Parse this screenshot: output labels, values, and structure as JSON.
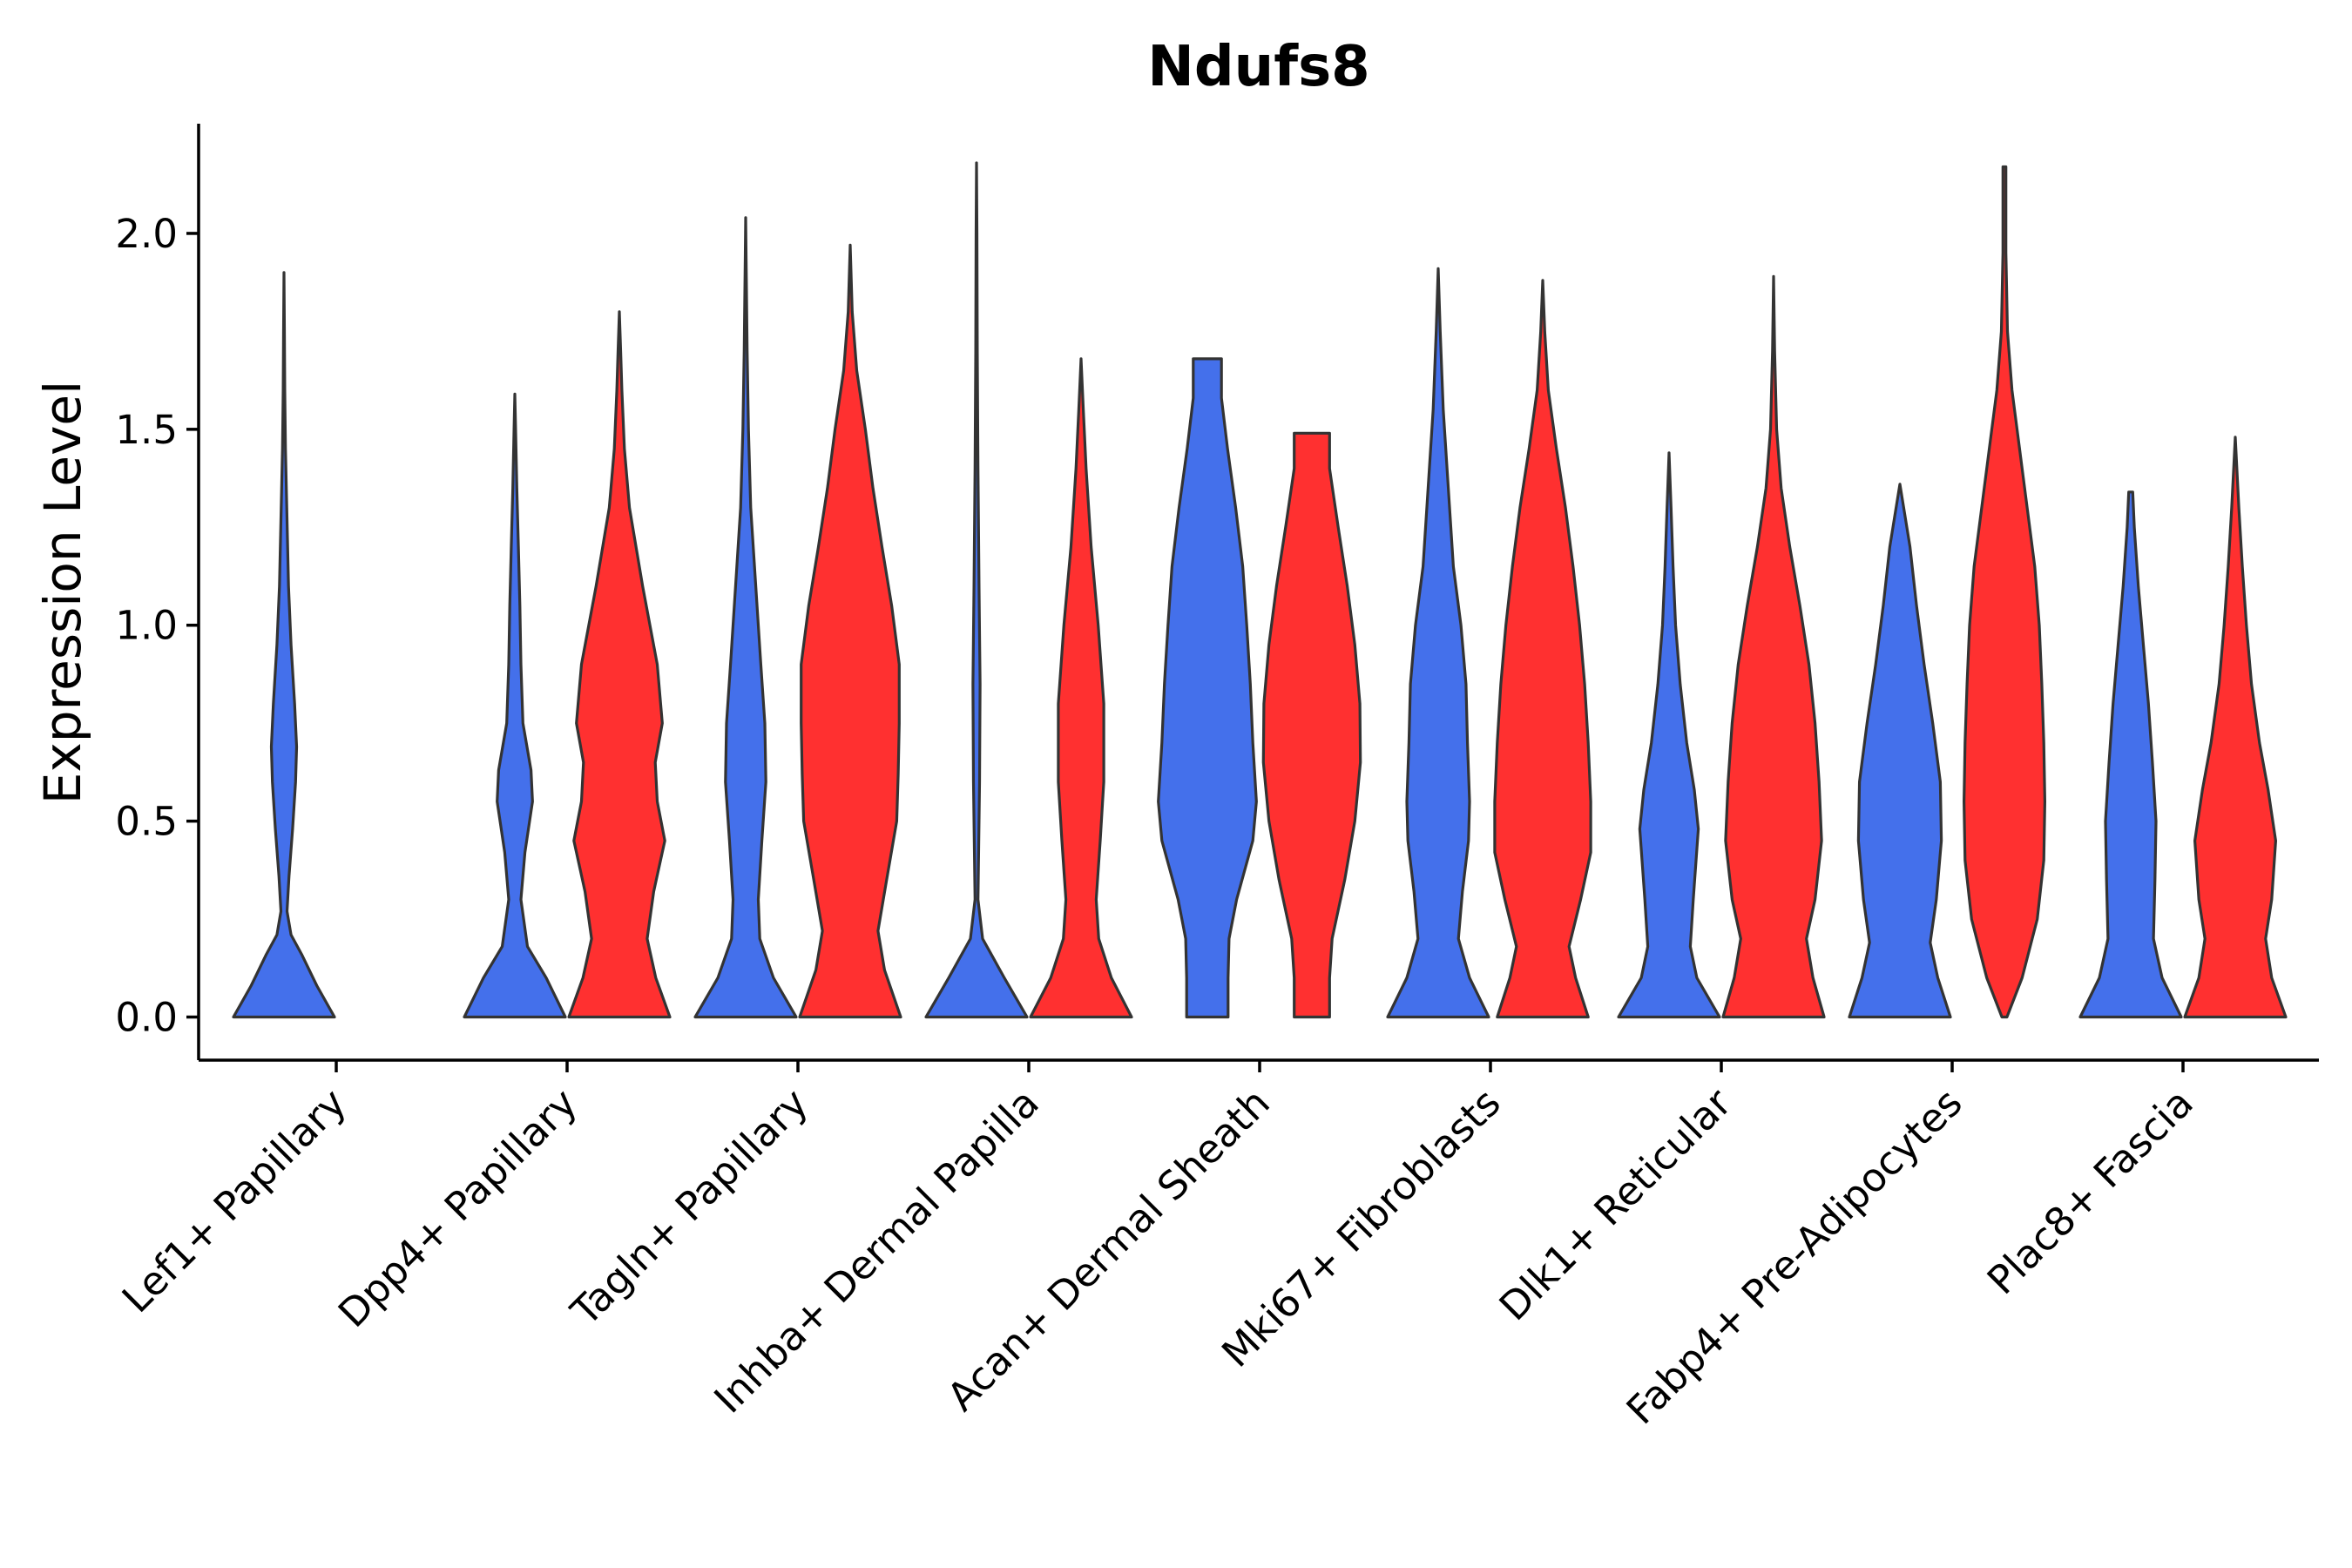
{
  "chart_data": {
    "type": "violin",
    "title": "Ndufs8",
    "xlabel": "",
    "ylabel": "Expression Level",
    "ylim": [
      -0.11,
      2.28
    ],
    "yticks": [
      0.0,
      0.5,
      1.0,
      1.5,
      2.0
    ],
    "ytick_labels": [
      "0.0",
      "0.5",
      "1.0",
      "1.5",
      "2.0"
    ],
    "grid": false,
    "legend": "none",
    "colors": {
      "group_a": "#4470EB",
      "group_b": "#FF3030",
      "outline": "#333333"
    },
    "categories": [
      "Lef1+ Papillary",
      "Dpp4+ Papillary",
      "Tagln+ Papillary",
      "Inhba+ Dermal Papilla",
      "Acan+ Dermal Sheath",
      "Mki67+ Fibroblasts",
      "Dlk1+ Reticular",
      "Fabp4+ Pre-Adipocytes",
      "Plac8+ Fascia"
    ],
    "violins": [
      {
        "category": 0,
        "group": "group_a",
        "max": 1.9,
        "density": [
          [
            0,
            1
          ],
          [
            0.08,
            0.65
          ],
          [
            0.16,
            0.35
          ],
          [
            0.21,
            0.14
          ],
          [
            0.27,
            0.06
          ],
          [
            0.36,
            0.1
          ],
          [
            0.48,
            0.17
          ],
          [
            0.6,
            0.23
          ],
          [
            0.69,
            0.25
          ],
          [
            0.8,
            0.21
          ],
          [
            0.95,
            0.14
          ],
          [
            1.1,
            0.09
          ],
          [
            1.3,
            0.055
          ],
          [
            1.45,
            0.03
          ],
          [
            1.6,
            0.015
          ],
          [
            1.75,
            0.008
          ],
          [
            1.9,
            0
          ]
        ]
      },
      {
        "category": 1,
        "group": "group_a",
        "max": 1.59,
        "density": [
          [
            0,
            1
          ],
          [
            0.1,
            0.62
          ],
          [
            0.18,
            0.25
          ],
          [
            0.3,
            0.12
          ],
          [
            0.42,
            0.2
          ],
          [
            0.55,
            0.35
          ],
          [
            0.63,
            0.32
          ],
          [
            0.75,
            0.16
          ],
          [
            0.9,
            0.12
          ],
          [
            1.05,
            0.1
          ],
          [
            1.2,
            0.07
          ],
          [
            1.35,
            0.04
          ],
          [
            1.5,
            0.015
          ],
          [
            1.59,
            0
          ]
        ]
      },
      {
        "category": 1,
        "group": "group_b",
        "max": 1.8,
        "density": [
          [
            0,
            1
          ],
          [
            0.1,
            0.72
          ],
          [
            0.2,
            0.55
          ],
          [
            0.32,
            0.68
          ],
          [
            0.45,
            0.9
          ],
          [
            0.55,
            0.75
          ],
          [
            0.65,
            0.71
          ],
          [
            0.75,
            0.85
          ],
          [
            0.9,
            0.75
          ],
          [
            1.1,
            0.46
          ],
          [
            1.3,
            0.2
          ],
          [
            1.45,
            0.1
          ],
          [
            1.6,
            0.05
          ],
          [
            1.7,
            0.025
          ],
          [
            1.8,
            0
          ]
        ]
      },
      {
        "category": 2,
        "group": "group_a",
        "max": 2.04,
        "density": [
          [
            0,
            1
          ],
          [
            0.1,
            0.55
          ],
          [
            0.2,
            0.28
          ],
          [
            0.3,
            0.25
          ],
          [
            0.45,
            0.32
          ],
          [
            0.6,
            0.4
          ],
          [
            0.75,
            0.38
          ],
          [
            0.9,
            0.3
          ],
          [
            1.1,
            0.2
          ],
          [
            1.3,
            0.1
          ],
          [
            1.5,
            0.055
          ],
          [
            1.7,
            0.03
          ],
          [
            1.9,
            0.012
          ],
          [
            2.04,
            0
          ]
        ]
      },
      {
        "category": 2,
        "group": "group_b",
        "max": 1.97,
        "density": [
          [
            0,
            1
          ],
          [
            0.12,
            0.68
          ],
          [
            0.22,
            0.55
          ],
          [
            0.35,
            0.72
          ],
          [
            0.5,
            0.92
          ],
          [
            0.62,
            0.95
          ],
          [
            0.75,
            0.97
          ],
          [
            0.9,
            0.97
          ],
          [
            1.05,
            0.82
          ],
          [
            1.2,
            0.63
          ],
          [
            1.35,
            0.45
          ],
          [
            1.5,
            0.3
          ],
          [
            1.65,
            0.13
          ],
          [
            1.8,
            0.04
          ],
          [
            1.97,
            0
          ]
        ]
      },
      {
        "category": 3,
        "group": "group_a",
        "max": 2.18,
        "density": [
          [
            0,
            1
          ],
          [
            0.1,
            0.55
          ],
          [
            0.2,
            0.12
          ],
          [
            0.3,
            0.03
          ],
          [
            0.6,
            0.06
          ],
          [
            0.85,
            0.07
          ],
          [
            1.1,
            0.05
          ],
          [
            1.4,
            0.03
          ],
          [
            1.7,
            0.015
          ],
          [
            2.0,
            0.008
          ],
          [
            2.18,
            0
          ]
        ]
      },
      {
        "category": 3,
        "group": "group_b",
        "max": 1.68,
        "density": [
          [
            0,
            1
          ],
          [
            0.1,
            0.6
          ],
          [
            0.2,
            0.35
          ],
          [
            0.3,
            0.3
          ],
          [
            0.45,
            0.38
          ],
          [
            0.6,
            0.45
          ],
          [
            0.8,
            0.45
          ],
          [
            1.0,
            0.34
          ],
          [
            1.2,
            0.2
          ],
          [
            1.4,
            0.1
          ],
          [
            1.55,
            0.045
          ],
          [
            1.68,
            0
          ]
        ]
      },
      {
        "category": 4,
        "group": "group_a",
        "max": 1.68,
        "density": [
          [
            0,
            0.41
          ],
          [
            0.1,
            0.41
          ],
          [
            0.2,
            0.43
          ],
          [
            0.3,
            0.58
          ],
          [
            0.45,
            0.9
          ],
          [
            0.55,
            0.97
          ],
          [
            0.7,
            0.9
          ],
          [
            0.85,
            0.85
          ],
          [
            1.0,
            0.78
          ],
          [
            1.15,
            0.7
          ],
          [
            1.3,
            0.56
          ],
          [
            1.45,
            0.4
          ],
          [
            1.58,
            0.28
          ],
          [
            1.68,
            0.28
          ]
        ]
      },
      {
        "category": 4,
        "group": "group_b",
        "max": 1.49,
        "density": [
          [
            0,
            0.35
          ],
          [
            0.1,
            0.35
          ],
          [
            0.2,
            0.4
          ],
          [
            0.35,
            0.65
          ],
          [
            0.5,
            0.85
          ],
          [
            0.65,
            0.96
          ],
          [
            0.8,
            0.95
          ],
          [
            0.95,
            0.85
          ],
          [
            1.1,
            0.7
          ],
          [
            1.25,
            0.52
          ],
          [
            1.4,
            0.35
          ],
          [
            1.49,
            0.35
          ]
        ]
      },
      {
        "category": 5,
        "group": "group_a",
        "max": 1.91,
        "density": [
          [
            0,
            1
          ],
          [
            0.1,
            0.62
          ],
          [
            0.2,
            0.4
          ],
          [
            0.32,
            0.48
          ],
          [
            0.45,
            0.6
          ],
          [
            0.55,
            0.62
          ],
          [
            0.7,
            0.58
          ],
          [
            0.85,
            0.55
          ],
          [
            1.0,
            0.45
          ],
          [
            1.15,
            0.3
          ],
          [
            1.35,
            0.2
          ],
          [
            1.55,
            0.1
          ],
          [
            1.75,
            0.04
          ],
          [
            1.91,
            0
          ]
        ]
      },
      {
        "category": 5,
        "group": "group_b",
        "max": 1.88,
        "density": [
          [
            0,
            0.9
          ],
          [
            0.1,
            0.65
          ],
          [
            0.18,
            0.52
          ],
          [
            0.3,
            0.75
          ],
          [
            0.42,
            0.95
          ],
          [
            0.55,
            0.95
          ],
          [
            0.7,
            0.9
          ],
          [
            0.85,
            0.83
          ],
          [
            1.0,
            0.73
          ],
          [
            1.15,
            0.6
          ],
          [
            1.3,
            0.45
          ],
          [
            1.45,
            0.27
          ],
          [
            1.6,
            0.11
          ],
          [
            1.75,
            0.04
          ],
          [
            1.88,
            0
          ]
        ]
      },
      {
        "category": 6,
        "group": "group_a",
        "max": 1.44,
        "density": [
          [
            0,
            1
          ],
          [
            0.1,
            0.55
          ],
          [
            0.18,
            0.42
          ],
          [
            0.3,
            0.48
          ],
          [
            0.48,
            0.58
          ],
          [
            0.58,
            0.5
          ],
          [
            0.7,
            0.35
          ],
          [
            0.85,
            0.22
          ],
          [
            1.0,
            0.13
          ],
          [
            1.15,
            0.08
          ],
          [
            1.3,
            0.04
          ],
          [
            1.44,
            0
          ]
        ]
      },
      {
        "category": 6,
        "group": "group_b",
        "max": 1.89,
        "density": [
          [
            0,
            1
          ],
          [
            0.1,
            0.78
          ],
          [
            0.2,
            0.65
          ],
          [
            0.3,
            0.82
          ],
          [
            0.45,
            0.95
          ],
          [
            0.6,
            0.9
          ],
          [
            0.75,
            0.82
          ],
          [
            0.9,
            0.7
          ],
          [
            1.05,
            0.52
          ],
          [
            1.2,
            0.32
          ],
          [
            1.35,
            0.15
          ],
          [
            1.5,
            0.06
          ],
          [
            1.7,
            0.02
          ],
          [
            1.89,
            0
          ]
        ]
      },
      {
        "category": 7,
        "group": "group_a",
        "max": 1.36,
        "density": [
          [
            0,
            1
          ],
          [
            0.1,
            0.75
          ],
          [
            0.19,
            0.6
          ],
          [
            0.3,
            0.72
          ],
          [
            0.45,
            0.82
          ],
          [
            0.6,
            0.8
          ],
          [
            0.75,
            0.65
          ],
          [
            0.9,
            0.48
          ],
          [
            1.05,
            0.33
          ],
          [
            1.2,
            0.2
          ],
          [
            1.36,
            0
          ]
        ]
      },
      {
        "category": 7,
        "group": "group_b",
        "max": 2.17,
        "density": [
          [
            0,
            0.05
          ],
          [
            0.1,
            0.35
          ],
          [
            0.25,
            0.65
          ],
          [
            0.4,
            0.78
          ],
          [
            0.55,
            0.8
          ],
          [
            0.7,
            0.78
          ],
          [
            0.85,
            0.74
          ],
          [
            1.0,
            0.69
          ],
          [
            1.15,
            0.6
          ],
          [
            1.3,
            0.45
          ],
          [
            1.45,
            0.3
          ],
          [
            1.6,
            0.15
          ],
          [
            1.75,
            0.06
          ],
          [
            1.95,
            0.03
          ],
          [
            2.17,
            0.03
          ]
        ]
      },
      {
        "category": 8,
        "group": "group_a",
        "max": 1.34,
        "density": [
          [
            0,
            1
          ],
          [
            0.1,
            0.62
          ],
          [
            0.2,
            0.45
          ],
          [
            0.35,
            0.48
          ],
          [
            0.5,
            0.5
          ],
          [
            0.65,
            0.43
          ],
          [
            0.8,
            0.35
          ],
          [
            0.95,
            0.25
          ],
          [
            1.1,
            0.15
          ],
          [
            1.25,
            0.07
          ],
          [
            1.34,
            0.04
          ]
        ]
      },
      {
        "category": 8,
        "group": "group_b",
        "max": 1.48,
        "density": [
          [
            0,
            1
          ],
          [
            0.1,
            0.72
          ],
          [
            0.2,
            0.6
          ],
          [
            0.3,
            0.72
          ],
          [
            0.45,
            0.8
          ],
          [
            0.58,
            0.65
          ],
          [
            0.7,
            0.48
          ],
          [
            0.85,
            0.32
          ],
          [
            1.0,
            0.22
          ],
          [
            1.15,
            0.14
          ],
          [
            1.3,
            0.07
          ],
          [
            1.48,
            0
          ]
        ]
      }
    ]
  }
}
